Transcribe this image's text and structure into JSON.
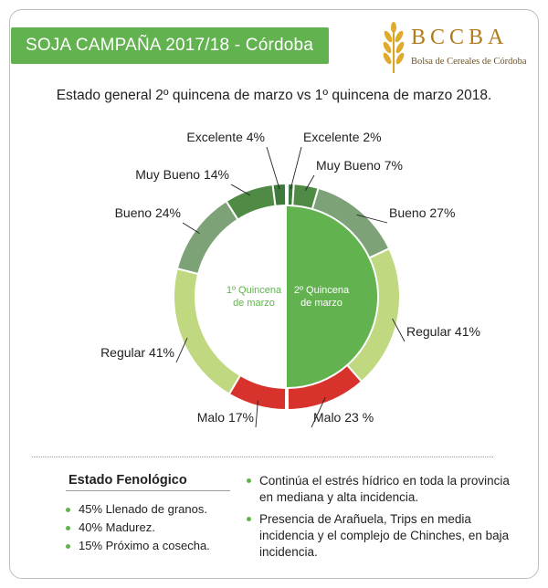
{
  "header": {
    "title": "SOJA CAMPAÑA 2017/18 - Córdoba"
  },
  "logo": {
    "name": "BCCBA",
    "subtitle": "Bolsa de Cereales de Córdoba",
    "icon": "wheat-icon"
  },
  "subtitle": "Estado general 2º quincena de marzo vs 1º quincena de marzo 2018.",
  "colors": {
    "accent": "#62b24f",
    "excelente": "#3d7a3b",
    "muy_bueno": "#4f8b45",
    "bueno": "#7ea277",
    "regular": "#c0d980",
    "malo": "#d8322c",
    "center_fill": "#62b24f"
  },
  "chart_data": {
    "type": "pie",
    "subtype": "split donut comparison",
    "categories": [
      "Excelente",
      "Muy Bueno",
      "Bueno",
      "Regular",
      "Malo"
    ],
    "series": [
      {
        "name": "1º Quincena de marzo",
        "side": "left",
        "values": [
          4,
          14,
          24,
          41,
          17
        ]
      },
      {
        "name": "2º Quincena de marzo",
        "side": "right",
        "values": [
          2,
          7,
          27,
          41,
          23
        ]
      }
    ],
    "labels_left": [
      "Excelente 4%",
      "Muy Bueno 14%",
      "Bueno 24%",
      "Regular 41%",
      "Malo 17%"
    ],
    "labels_right": [
      "Excelente 2%",
      "Muy Bueno 7%",
      "Bueno 27%",
      "Regular 41%",
      "Malo 23 %"
    ],
    "center_left_label": [
      "1º Quincena",
      "de marzo"
    ],
    "center_right_label": [
      "2º Quincena",
      "de marzo"
    ],
    "unit": "%"
  },
  "fenologico": {
    "title": "Estado Fenológico",
    "items": [
      "45% Llenado de granos.",
      "40% Madurez.",
      "15% Próximo a cosecha."
    ]
  },
  "notes": [
    "Continúa el estrés hídrico en toda la provincia en mediana y alta incidencia.",
    "Presencia de Arañuela, Trips en media incidencia y el complejo de Chinches, en baja incidencia."
  ]
}
